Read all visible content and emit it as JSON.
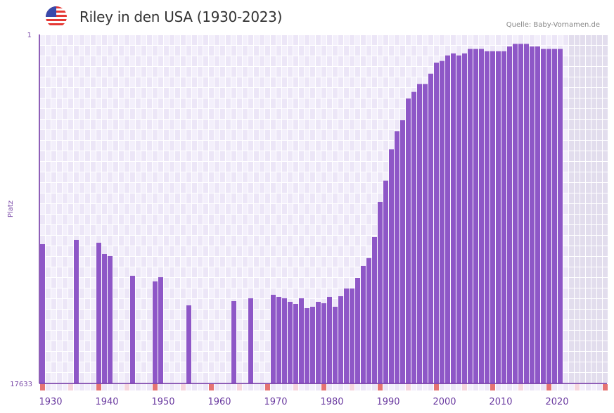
{
  "header": {
    "title": "Riley in den USA (1930-2023)",
    "source": "Quelle: Baby-Vornamen.de",
    "flag_icon": "us-flag-icon"
  },
  "colors": {
    "bar": "#8e57c7",
    "axis": "#6a2aa0",
    "grid_bg_a": "#f3effb",
    "grid_bg_b": "#ece6f7",
    "future_bg": "#e2dded",
    "decade_marker": "#e57373",
    "half_decade_marker": "#f6d6de"
  },
  "chart_data": {
    "type": "bar",
    "title": "Riley in den USA (1930-2023)",
    "xlabel": "",
    "ylabel": "Platz",
    "y_axis": {
      "top_label": "1",
      "bottom_label": "17633",
      "range": [
        1,
        17633
      ],
      "inverted": true,
      "scale": "log"
    },
    "x_axis": {
      "range": [
        1930,
        2030
      ],
      "tick_labels": [
        "1930",
        "1940",
        "1950",
        "1960",
        "1970",
        "1980",
        "1990",
        "2000",
        "2010",
        "2020"
      ]
    },
    "data_range_end": 2023,
    "grid": true,
    "years": [
      1930,
      1936,
      1940,
      1941,
      1942,
      1946,
      1950,
      1951,
      1956,
      1964,
      1967,
      1971,
      1972,
      1973,
      1974,
      1975,
      1976,
      1977,
      1978,
      1979,
      1980,
      1981,
      1982,
      1983,
      1984,
      1985,
      1986,
      1987,
      1988,
      1989,
      1990,
      1991,
      1992,
      1993,
      1994,
      1995,
      1996,
      1997,
      1998,
      1999,
      2000,
      2001,
      2002,
      2003,
      2004,
      2005,
      2006,
      2007,
      2008,
      2009,
      2010,
      2011,
      2012,
      2013,
      2014,
      2015,
      2016,
      2017,
      2018,
      2019,
      2020,
      2021,
      2022
    ],
    "ranks": [
      356,
      316,
      342,
      469,
      497,
      863,
      1011,
      899,
      1977,
      1757,
      1623,
      1470,
      1560,
      1623,
      1791,
      1901,
      1623,
      2139,
      2057,
      1791,
      1864,
      1560,
      2057,
      1530,
      1232,
      1232,
      916,
      655,
      527,
      292,
      109,
      60,
      25,
      15,
      11,
      6,
      5,
      4,
      4,
      3,
      2.2,
      2.1,
      1.8,
      1.7,
      1.8,
      1.7,
      1.5,
      1.5,
      1.5,
      1.6,
      1.6,
      1.6,
      1.6,
      1.4,
      1.3,
      1.3,
      1.3,
      1.4,
      1.4,
      1.5,
      1.5,
      1.5,
      1.5
    ]
  }
}
